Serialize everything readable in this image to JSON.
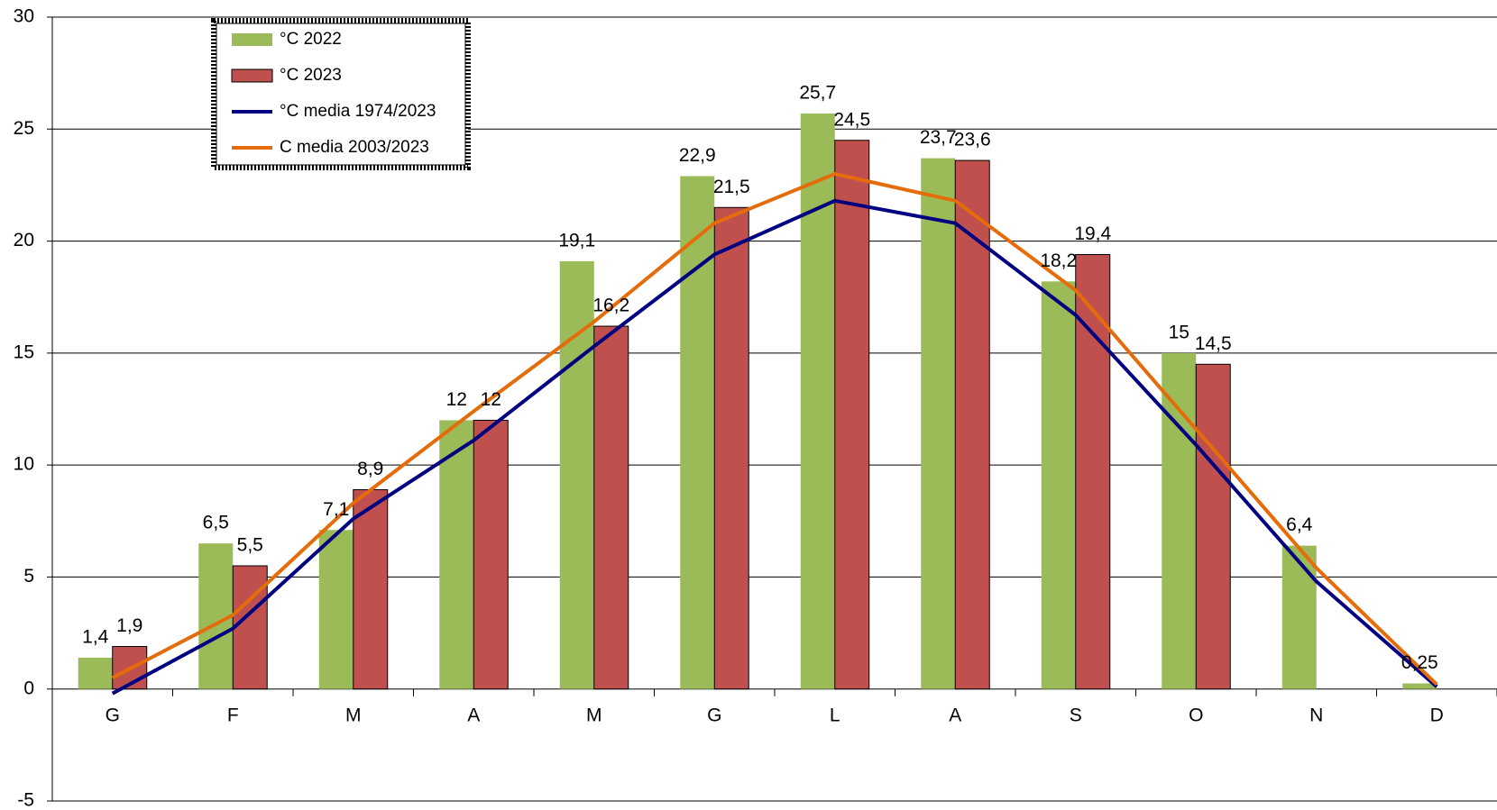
{
  "chart_data": {
    "type": "bar",
    "categories": [
      "G",
      "F",
      "M",
      "A",
      "M",
      "G",
      "L",
      "A",
      "S",
      "O",
      "N",
      "D"
    ],
    "series": [
      {
        "name": "°C 2022",
        "type": "bar",
        "color": "#9bbb59",
        "values": [
          1.4,
          6.5,
          7.1,
          12,
          19.1,
          22.9,
          25.7,
          23.7,
          18.2,
          15,
          6.4,
          0.25
        ],
        "value_labels": [
          "1,4",
          "6,5",
          "7,1",
          "12",
          "19,1",
          "22,9",
          "25,7",
          "23,7",
          "18,2",
          "15",
          "6,4",
          "0,25"
        ]
      },
      {
        "name": "°C 2023",
        "type": "bar",
        "color": "#c0504d",
        "values": [
          1.9,
          5.5,
          8.9,
          12,
          16.2,
          21.5,
          24.5,
          23.6,
          19.4,
          14.5,
          null,
          null
        ],
        "value_labels": [
          "1,9",
          "5,5",
          "8,9",
          "12",
          "16,2",
          "21,5",
          "24,5",
          "23,6",
          "19,4",
          "14,5",
          null,
          null
        ]
      },
      {
        "name": "°C media 1974/2023",
        "type": "line",
        "color": "#000080",
        "values": [
          -0.2,
          2.7,
          7.6,
          11.1,
          15.3,
          19.4,
          21.8,
          20.8,
          16.7,
          10.9,
          4.8,
          0.1
        ]
      },
      {
        "name": "C media 2003/2023",
        "type": "line",
        "color": "#e46c0a",
        "values": [
          0.5,
          3.3,
          8.3,
          12.4,
          16.4,
          20.8,
          23.0,
          21.8,
          17.8,
          11.6,
          5.4,
          0.2
        ]
      }
    ],
    "ylim": [
      -5,
      30
    ],
    "yticks": [
      -5,
      0,
      5,
      10,
      15,
      20,
      25,
      30
    ],
    "grid": true,
    "legend": "upper left"
  }
}
